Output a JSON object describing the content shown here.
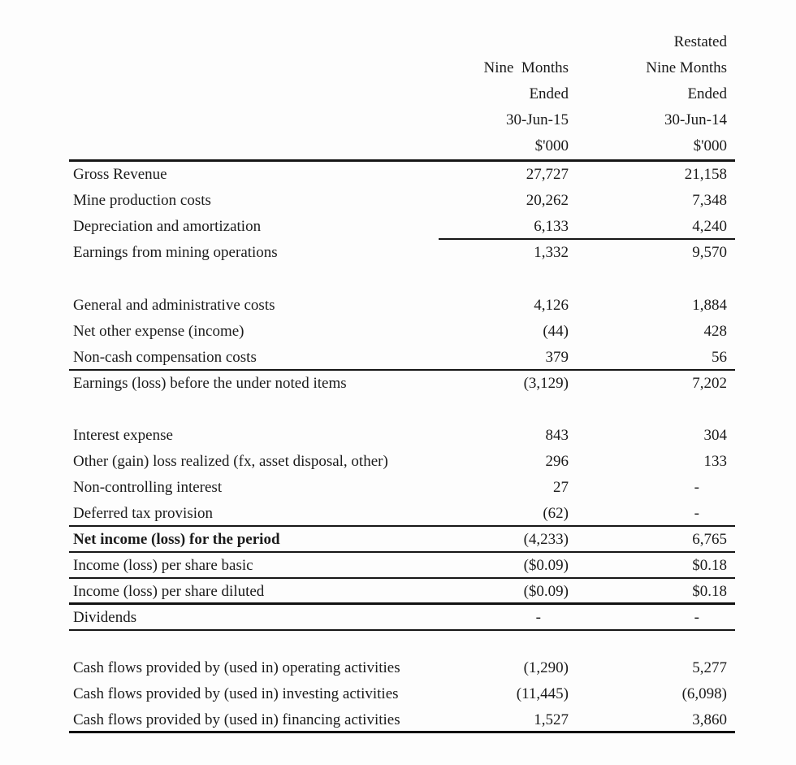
{
  "document": {
    "kind": "financial-statement-table",
    "background_color": "#fdfdfd",
    "text_color": "#1b1b1b",
    "rule_color": "#161616"
  },
  "header": {
    "col_2015_lines": [
      "",
      "Nine  Months",
      "Ended",
      "30-Jun-15",
      "$'000"
    ],
    "col_2014_lines": [
      "Restated",
      "Nine Months",
      "Ended",
      "30-Jun-14",
      "$'000"
    ]
  },
  "table": {
    "rows": [
      {
        "label": "Gross Revenue",
        "v2015": "27,727",
        "v2014": "21,158",
        "rule": "none"
      },
      {
        "label": "Mine production costs",
        "v2015": "20,262",
        "v2014": "7,348",
        "rule": "none"
      },
      {
        "label": "Depreciation and amortization",
        "v2015": "6,133",
        "v2014": "4,240",
        "rule": "partial"
      },
      {
        "label": "Earnings from mining operations",
        "v2015": "1,332",
        "v2014": "9,570",
        "rule": "none"
      },
      {
        "spacer": true,
        "height": 33
      },
      {
        "label": "General and administrative costs",
        "v2015": "4,126",
        "v2014": "1,884",
        "rule": "none"
      },
      {
        "label": "Net other expense (income)",
        "v2015": "(44)",
        "v2014": "428",
        "rule": "none"
      },
      {
        "label": "Non-cash compensation costs",
        "v2015": "379",
        "v2014": "56",
        "rule": "full"
      },
      {
        "label": "Earnings (loss) before the under noted items",
        "v2015": "(3,129)",
        "v2014": "7,202",
        "rule": "none"
      },
      {
        "spacer": true,
        "height": 32
      },
      {
        "label": "Interest expense",
        "v2015": "843",
        "v2014": "304",
        "rule": "none"
      },
      {
        "label": "Other (gain) loss realized (fx, asset disposal, other)",
        "v2015": "296",
        "v2014": "133",
        "rule": "none"
      },
      {
        "label": "Non-controlling interest",
        "v2015": "27",
        "v2014": "-",
        "rule": "none"
      },
      {
        "label": "Deferred tax provision",
        "v2015": "(62)",
        "v2014": "-",
        "rule": "full"
      },
      {
        "label": "Net income (loss) for the period",
        "v2015": "(4,233)",
        "v2014": "6,765",
        "rule": "full",
        "bold": true
      },
      {
        "label": "Income (loss) per share basic",
        "v2015": "($0.09)",
        "v2014": "$0.18",
        "rule": "full"
      },
      {
        "label": "Income (loss) per share diluted",
        "v2015": "($0.09)",
        "v2014": "$0.18",
        "rule": "thick"
      },
      {
        "label": "Dividends",
        "v2015": "-",
        "v2014": "-",
        "rule": "full"
      },
      {
        "spacer": true,
        "height": 30
      },
      {
        "label": "Cash flows provided by (used in) operating activities",
        "v2015": "(1,290)",
        "v2014": "5,277",
        "rule": "none"
      },
      {
        "label": "Cash flows provided by (used in) investing activities",
        "v2015": "(11,445)",
        "v2014": "(6,098)",
        "rule": "none"
      },
      {
        "label": "Cash flows provided by (used in) financing activities",
        "v2015": "1,527",
        "v2014": "3,860",
        "rule": "thick"
      }
    ]
  }
}
